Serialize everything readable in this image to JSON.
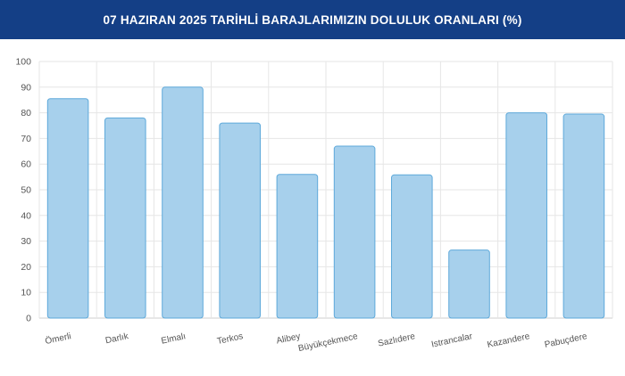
{
  "header": {
    "title": "07 HAZIRAN 2025 TARİHLİ BARAJLARIMIZIN DOLULUK ORANLARI (%)"
  },
  "colors": {
    "header_bg": "#143f86",
    "bar_fill": "#a7d0ec",
    "bar_stroke": "#5ea9da"
  },
  "chart_data": {
    "type": "bar",
    "title": "07 HAZIRAN 2025 TARİHLİ BARAJLARIMIZIN DOLULUK ORANLARI (%)",
    "categories": [
      "Ömerli",
      "Darlık",
      "Elmalı",
      "Terkos",
      "Alibey",
      "Büyükçekmece",
      "Sazlıdere",
      "Istrancalar",
      "Kazandere",
      "Pabuçdere"
    ],
    "values": [
      85.5,
      78,
      90,
      76,
      56,
      67,
      55.8,
      26.5,
      80,
      79.5
    ],
    "ylim": [
      0,
      100
    ],
    "yticks": [
      0,
      10,
      20,
      30,
      40,
      50,
      60,
      70,
      80,
      90,
      100
    ],
    "grid": true,
    "legend": "none"
  }
}
